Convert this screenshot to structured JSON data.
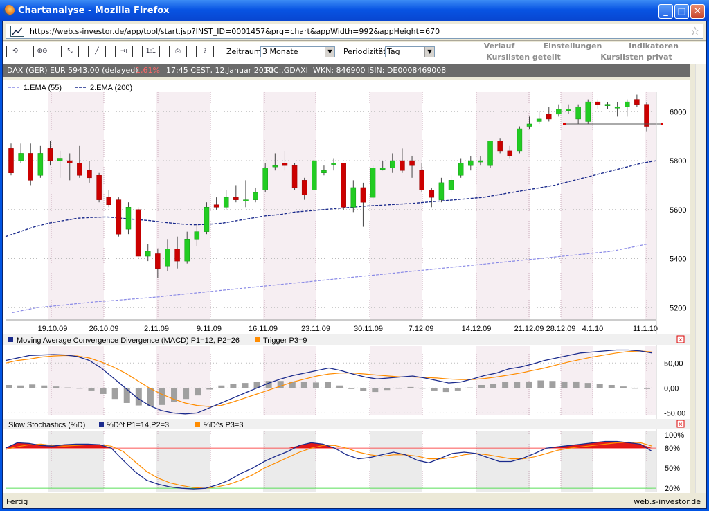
{
  "window": {
    "title": "Chartanalyse - Mozilla Firefox",
    "min": "_",
    "max": "□",
    "close": "✕"
  },
  "address": {
    "url": "https://web.s-investor.de/app/tool/start.jsp?INST_ID=0001457&prg=chart&appWidth=992&appHeight=670"
  },
  "toolbar": {
    "buttons": [
      {
        "name": "refresh-icon",
        "glyph": "⟲"
      },
      {
        "name": "zoom-icon",
        "glyph": "⊕⊖"
      },
      {
        "name": "crosshair-icon",
        "glyph": "⤡"
      },
      {
        "name": "trendline-icon",
        "glyph": "╱"
      },
      {
        "name": "indicator-icon",
        "glyph": "→i"
      },
      {
        "name": "scale-icon",
        "glyph": "1:1"
      },
      {
        "name": "print-icon",
        "glyph": "⎙"
      },
      {
        "name": "help-icon",
        "glyph": "?"
      }
    ],
    "zeitraum_label": "Zeitraum:",
    "zeitraum_value": "3 Monate",
    "periodizitaet_label": "Periodizität:",
    "periodizitaet_value": "Tag"
  },
  "tabs": {
    "verlauf": "Verlauf",
    "einstellungen": "Einstellungen",
    "indikatoren": "Indikatoren",
    "kurslisten_geteilt": "Kurslisten geteilt",
    "kurslisten_privat": "Kurslisten privat"
  },
  "info": {
    "instrument": "DAX (GER) EUR 5943,00 (delayed)",
    "change": "-1,61%",
    "time": "17:45 CEST, 12.Januar 2010",
    "ric": "RIC:.GDAXI",
    "wkn": "WKN: 846900",
    "isin": "ISIN: DE0008469008",
    "change_color": "#ff6a6a"
  },
  "legend": {
    "ema1": "1.EMA (55)",
    "ema2": "2.EMA (200)"
  },
  "status": {
    "left": "Fertig",
    "right": "web.s-investor.de"
  },
  "chart_data": [
    {
      "type": "candlestick",
      "title": "",
      "y_ticks": [
        "6000",
        "5800",
        "5600",
        "5400",
        "5200"
      ],
      "ylim": [
        5150,
        6080
      ],
      "x_tick_labels": [
        "19.10.09",
        "26.10.09",
        "2.11.09",
        "9.11.09",
        "16.11.09",
        "23.11.09",
        "30.11.09",
        "7.12.09",
        "14.12.09",
        "21.12.09",
        "28.12.09",
        "4.1.10",
        "11.1.10"
      ],
      "candles": [
        [
          5850,
          5750,
          5870,
          5740
        ],
        [
          5800,
          5830,
          5870,
          5790
        ],
        [
          5830,
          5720,
          5870,
          5700
        ],
        [
          5740,
          5830,
          5860,
          5730
        ],
        [
          5850,
          5800,
          5880,
          5780
        ],
        [
          5800,
          5810,
          5840,
          5730
        ],
        [
          5800,
          5790,
          5830,
          5720
        ],
        [
          5790,
          5740,
          5860,
          5730
        ],
        [
          5760,
          5730,
          5800,
          5710
        ],
        [
          5740,
          5640,
          5750,
          5630
        ],
        [
          5650,
          5620,
          5680,
          5610
        ],
        [
          5640,
          5500,
          5650,
          5490
        ],
        [
          5520,
          5610,
          5630,
          5500
        ],
        [
          5600,
          5410,
          5610,
          5400
        ],
        [
          5410,
          5430,
          5460,
          5390
        ],
        [
          5420,
          5360,
          5440,
          5320
        ],
        [
          5370,
          5440,
          5480,
          5350
        ],
        [
          5440,
          5390,
          5490,
          5360
        ],
        [
          5390,
          5480,
          5510,
          5380
        ],
        [
          5480,
          5510,
          5540,
          5450
        ],
        [
          5510,
          5610,
          5630,
          5500
        ],
        [
          5620,
          5610,
          5650,
          5600
        ],
        [
          5610,
          5650,
          5680,
          5600
        ],
        [
          5650,
          5640,
          5700,
          5630
        ],
        [
          5640,
          5640,
          5720,
          5610
        ],
        [
          5640,
          5670,
          5690,
          5630
        ],
        [
          5680,
          5770,
          5790,
          5670
        ],
        [
          5780,
          5780,
          5830,
          5760
        ],
        [
          5790,
          5780,
          5840,
          5760
        ],
        [
          5780,
          5690,
          5790,
          5680
        ],
        [
          5720,
          5660,
          5730,
          5640
        ],
        [
          5680,
          5800,
          5800,
          5680
        ],
        [
          5750,
          5760,
          5780,
          5740
        ],
        [
          5790,
          5790,
          5810,
          5760
        ],
        [
          5790,
          5610,
          5790,
          5600
        ],
        [
          5610,
          5690,
          5720,
          5590
        ],
        [
          5690,
          5630,
          5710,
          5530
        ],
        [
          5650,
          5770,
          5780,
          5640
        ],
        [
          5770,
          5770,
          5800,
          5760
        ],
        [
          5770,
          5800,
          5830,
          5750
        ],
        [
          5800,
          5760,
          5850,
          5750
        ],
        [
          5800,
          5780,
          5820,
          5730
        ],
        [
          5760,
          5680,
          5790,
          5670
        ],
        [
          5680,
          5650,
          5690,
          5610
        ],
        [
          5640,
          5710,
          5730,
          5630
        ],
        [
          5680,
          5720,
          5740,
          5670
        ],
        [
          5740,
          5790,
          5810,
          5730
        ],
        [
          5780,
          5800,
          5820,
          5760
        ],
        [
          5800,
          5800,
          5820,
          5780
        ],
        [
          5780,
          5880,
          5880,
          5770
        ],
        [
          5880,
          5840,
          5890,
          5830
        ],
        [
          5840,
          5820,
          5860,
          5810
        ],
        [
          5840,
          5930,
          5940,
          5830
        ],
        [
          5940,
          5950,
          5980,
          5930
        ],
        [
          5960,
          5970,
          6000,
          5950
        ],
        [
          5990,
          5970,
          6020,
          5960
        ],
        [
          5990,
          6010,
          6030,
          5980
        ],
        [
          6010,
          6010,
          6030,
          5990
        ],
        [
          5970,
          6020,
          6030,
          5950
        ],
        [
          5960,
          6040,
          6050,
          5950
        ],
        [
          6040,
          6030,
          6050,
          6010
        ],
        [
          6030,
          6030,
          6040,
          6010
        ],
        [
          6020,
          6020,
          6040,
          5980
        ],
        [
          6020,
          6040,
          6050,
          5980
        ],
        [
          6050,
          6030,
          6070,
          6020
        ],
        [
          6030,
          5940,
          6040,
          5920
        ]
      ],
      "series": [
        {
          "name": "1.EMA (55)",
          "values": [
            5180,
            5190,
            5200,
            5205,
            5210,
            5215,
            5220,
            5225,
            5228,
            5232,
            5236,
            5240,
            5244,
            5250,
            5255,
            5260,
            5265,
            5270,
            5275,
            5280,
            5285,
            5290,
            5295,
            5300,
            5305,
            5310,
            5315,
            5320,
            5325,
            5330,
            5335,
            5340,
            5345,
            5350,
            5355,
            5360,
            5365,
            5370,
            5375,
            5380,
            5385,
            5390,
            5395,
            5400,
            5405,
            5410,
            5415,
            5420,
            5425,
            5430,
            5440,
            5450,
            5460
          ]
        },
        {
          "name": "2.EMA (200)",
          "values": [
            5490,
            5510,
            5530,
            5545,
            5555,
            5565,
            5568,
            5570,
            5565,
            5560,
            5555,
            5548,
            5542,
            5538,
            5540,
            5545,
            5555,
            5565,
            5575,
            5580,
            5590,
            5595,
            5600,
            5605,
            5610,
            5615,
            5618,
            5622,
            5625,
            5630,
            5635,
            5640,
            5645,
            5650,
            5660,
            5670,
            5680,
            5690,
            5700,
            5715,
            5730,
            5745,
            5760,
            5775,
            5790,
            5800
          ]
        }
      ],
      "annotation": {
        "level": 5950
      }
    },
    {
      "type": "bar+line",
      "title": "Moving Average Convergence Divergence (MACD) P1=12, P2=26",
      "y_ticks": [
        "50,00",
        "0,00",
        "-50,00"
      ],
      "ylim": [
        -55,
        85
      ],
      "series": [
        {
          "name": "Moving Average Convergence Divergence (MACD) P1=12, P2=26",
          "values": [
            55,
            60,
            65,
            66,
            67,
            66,
            63,
            55,
            40,
            20,
            0,
            -20,
            -35,
            -45,
            -50,
            -52,
            -50,
            -40,
            -30,
            -20,
            -10,
            0,
            10,
            18,
            25,
            30,
            35,
            40,
            35,
            28,
            22,
            18,
            20,
            22,
            24,
            20,
            15,
            10,
            12,
            18,
            25,
            30,
            38,
            42,
            48,
            55,
            60,
            65,
            70,
            72,
            74,
            76,
            76,
            74,
            70
          ]
        },
        {
          "name": "Trigger P3=9",
          "values": [
            50,
            55,
            58,
            62,
            64,
            65,
            64,
            60,
            52,
            42,
            30,
            15,
            0,
            -12,
            -22,
            -30,
            -35,
            -37,
            -35,
            -28,
            -20,
            -12,
            -4,
            4,
            12,
            18,
            24,
            28,
            30,
            30,
            28,
            26,
            24,
            22,
            22,
            21,
            20,
            18,
            17,
            17,
            19,
            22,
            26,
            30,
            35,
            40,
            46,
            52,
            57,
            62,
            66,
            70,
            73,
            74,
            72
          ]
        }
      ],
      "histogram": [
        6,
        5,
        7,
        5,
        3,
        1,
        -1,
        -5,
        -12,
        -22,
        -30,
        -35,
        -36,
        -34,
        -28,
        -22,
        -15,
        -3,
        5,
        8,
        10,
        12,
        14,
        14,
        13,
        12,
        11,
        12,
        5,
        -2,
        -6,
        -8,
        -4,
        0,
        2,
        -1,
        -5,
        -8,
        -5,
        1,
        6,
        8,
        12,
        12,
        13,
        15,
        14,
        13,
        13,
        10,
        8,
        6,
        3,
        0,
        -2
      ]
    },
    {
      "type": "line",
      "title": "Slow Stochastics (%D)",
      "y_ticks": [
        "100%",
        "80%",
        "50%",
        "20%"
      ],
      "ylim": [
        15,
        105
      ],
      "series": [
        {
          "name": "%D^f P1=14,P2=3",
          "values": [
            80,
            88,
            87,
            84,
            83,
            85,
            86,
            86,
            85,
            80,
            62,
            45,
            32,
            26,
            22,
            20,
            19,
            20,
            25,
            32,
            42,
            50,
            60,
            68,
            75,
            84,
            88,
            86,
            80,
            70,
            64,
            66,
            70,
            74,
            70,
            62,
            58,
            65,
            72,
            74,
            72,
            66,
            60,
            60,
            65,
            72,
            80,
            82,
            84,
            86,
            88,
            90,
            90,
            88,
            86,
            75
          ]
        },
        {
          "name": "%D^s P3=3",
          "values": [
            78,
            82,
            85,
            86,
            84,
            83,
            84,
            85,
            85,
            83,
            75,
            60,
            45,
            35,
            28,
            24,
            21,
            20,
            22,
            26,
            32,
            40,
            50,
            58,
            66,
            74,
            80,
            84,
            84,
            80,
            74,
            70,
            68,
            70,
            70,
            68,
            64,
            64,
            66,
            70,
            72,
            70,
            67,
            64,
            64,
            67,
            72,
            77,
            80,
            82,
            84,
            86,
            88,
            89,
            88,
            83
          ]
        }
      ],
      "reference_lines": [
        20,
        80
      ]
    }
  ],
  "sub_titles": {
    "macd": "Moving Average Convergence Divergence (MACD) P1=12, P2=26",
    "macd_trigger": "Trigger P3=9",
    "stoch": "Slow Stochastics (%D)",
    "stoch_df": "%D^f P1=14,P2=3",
    "stoch_ds": "%D^s P3=3"
  },
  "colors": {
    "up": "#22cc22",
    "down": "#cc0000",
    "macd": "#1a2a8c",
    "trigger": "#ff8c00",
    "ema200": "#1a2a8c",
    "ema55": "#8a8ae6",
    "hist": "#a0a0a0",
    "band": "#f6eef2"
  }
}
